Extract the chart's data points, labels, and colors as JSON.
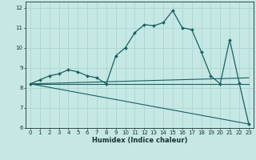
{
  "title": "",
  "xlabel": "Humidex (Indice chaleur)",
  "ylabel": "",
  "xlim": [
    -0.5,
    23.5
  ],
  "ylim": [
    6,
    12.3
  ],
  "yticks": [
    6,
    7,
    8,
    9,
    10,
    11,
    12
  ],
  "xticks": [
    0,
    1,
    2,
    3,
    4,
    5,
    6,
    7,
    8,
    9,
    10,
    11,
    12,
    13,
    14,
    15,
    16,
    17,
    18,
    19,
    20,
    21,
    22,
    23
  ],
  "background_color": "#c5e8e5",
  "grid_color": "#a8d0cc",
  "series_main": {
    "x": [
      0,
      1,
      2,
      3,
      4,
      5,
      6,
      7,
      8,
      9,
      10,
      11,
      12,
      13,
      14,
      15,
      16,
      17,
      18,
      19,
      20,
      21,
      22,
      23
    ],
    "y": [
      8.2,
      8.4,
      8.6,
      8.7,
      8.9,
      8.8,
      8.6,
      8.5,
      8.2,
      9.6,
      10.0,
      10.75,
      11.15,
      11.1,
      11.25,
      11.85,
      11.0,
      10.9,
      9.8,
      8.6,
      8.2,
      10.4,
      8.25,
      6.2
    ],
    "marker": "D",
    "markersize": 2.0,
    "linewidth": 0.9,
    "color": "#1a6060"
  },
  "series_flat": {
    "x": [
      0,
      23
    ],
    "y": [
      8.2,
      8.2
    ],
    "linewidth": 0.8,
    "color": "#1a6060"
  },
  "series_slight": {
    "x": [
      0,
      23
    ],
    "y": [
      8.2,
      8.5
    ],
    "linewidth": 0.8,
    "color": "#1a6060"
  },
  "series_decline": {
    "x": [
      0,
      23
    ],
    "y": [
      8.2,
      6.2
    ],
    "linewidth": 0.8,
    "color": "#1a6060"
  },
  "line_color": "#1a6060",
  "tick_color": "#1a3030",
  "tick_fontsize": 5,
  "xlabel_fontsize": 6
}
